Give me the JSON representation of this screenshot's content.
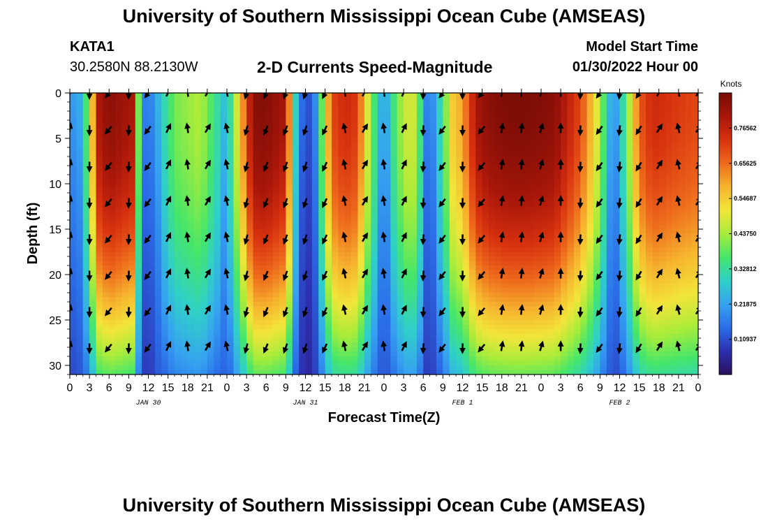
{
  "header": {
    "title": "University of Southern Mississippi Ocean Cube (AMSEAS)",
    "station": "KATA1",
    "coords": "30.2580N  88.2130W",
    "subtitle": "2-D Currents Speed-Magnitude",
    "start_label": "Model Start Time",
    "start_value": "01/30/2022 Hour 00"
  },
  "footer": {
    "title": "University of Southern Mississippi Ocean Cube (AMSEAS)"
  },
  "colors": {
    "palette": [
      "#2b0f5c",
      "#2c2fb0",
      "#2b6de8",
      "#36a3f0",
      "#2fd0c8",
      "#45e66a",
      "#a8ec3a",
      "#f2e53a",
      "#f6b42e",
      "#ee6a1c",
      "#d8320f",
      "#a8160a",
      "#7a0d06"
    ]
  },
  "chart_data": {
    "type": "heatmap",
    "title": "2-D Currents Speed-Magnitude",
    "xlabel": "Forecast Time(Z)",
    "ylabel": "Depth (ft)",
    "x_ticks": [
      "0",
      "3",
      "6",
      "9",
      "12",
      "15",
      "18",
      "21",
      "0",
      "3",
      "6",
      "9",
      "12",
      "15",
      "18",
      "21",
      "0",
      "3",
      "6",
      "9",
      "12",
      "15",
      "18",
      "21",
      "0",
      "3",
      "6",
      "9",
      "12",
      "15",
      "18",
      "21",
      "0"
    ],
    "x_range_hours": [
      0,
      96
    ],
    "date_labels": [
      {
        "hour": 12,
        "text": "JAN 30"
      },
      {
        "hour": 36,
        "text": "JAN 31"
      },
      {
        "hour": 60,
        "text": "FEB 1"
      },
      {
        "hour": 84,
        "text": "FEB 2"
      }
    ],
    "y_ticks": [
      0,
      5,
      10,
      15,
      20,
      25,
      30
    ],
    "ylim": [
      0,
      31
    ],
    "colorbar": {
      "unit": "Knots",
      "range": [
        0,
        0.875
      ],
      "tick_labels": [
        "0.10937",
        "0.21875",
        "0.32812",
        "0.43750",
        "0.54687",
        "0.65625",
        "0.76562"
      ]
    },
    "arrow_depths": [
      0,
      4,
      8,
      12,
      16,
      20,
      24,
      28
    ],
    "surface_speed_profile": {
      "hours": [
        0,
        2,
        4.5,
        6,
        9.5,
        11,
        12,
        13,
        16,
        20,
        24,
        27,
        28,
        30,
        33,
        34.5,
        35.5,
        37,
        38,
        40,
        42,
        44,
        45,
        47,
        48,
        50,
        52,
        53,
        54.5,
        55.5,
        57,
        58.5,
        60,
        62,
        64,
        67,
        70,
        74,
        78,
        80,
        81,
        82,
        83,
        84,
        85.5,
        87,
        89,
        93,
        96
      ],
      "speeds_knots": [
        0.2,
        0.25,
        0.8,
        0.85,
        0.8,
        0.2,
        0.15,
        0.22,
        0.4,
        0.45,
        0.25,
        0.7,
        0.85,
        0.86,
        0.8,
        0.3,
        0.15,
        0.1,
        0.28,
        0.7,
        0.75,
        0.72,
        0.55,
        0.3,
        0.2,
        0.4,
        0.5,
        0.45,
        0.18,
        0.2,
        0.35,
        0.55,
        0.6,
        0.8,
        0.85,
        0.87,
        0.87,
        0.85,
        0.7,
        0.55,
        0.45,
        0.3,
        0.2,
        0.25,
        0.45,
        0.68,
        0.75,
        0.72,
        0.7
      ]
    }
  }
}
